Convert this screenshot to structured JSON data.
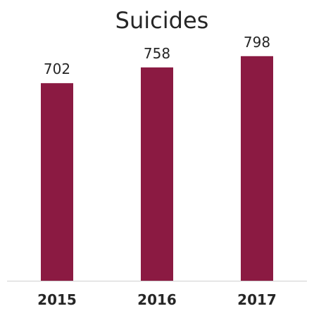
{
  "chart_data": {
    "type": "bar",
    "title": "Suicides",
    "xlabel": "",
    "ylabel": "",
    "categories": [
      "2015",
      "2016",
      "2017"
    ],
    "values": [
      702,
      758,
      798
    ],
    "ylim": [
      0,
      820
    ],
    "grid": false,
    "legend": "none",
    "bar_color": "#8b1a42",
    "axis_color": "#d0d0d0",
    "text_color": "#262626"
  }
}
